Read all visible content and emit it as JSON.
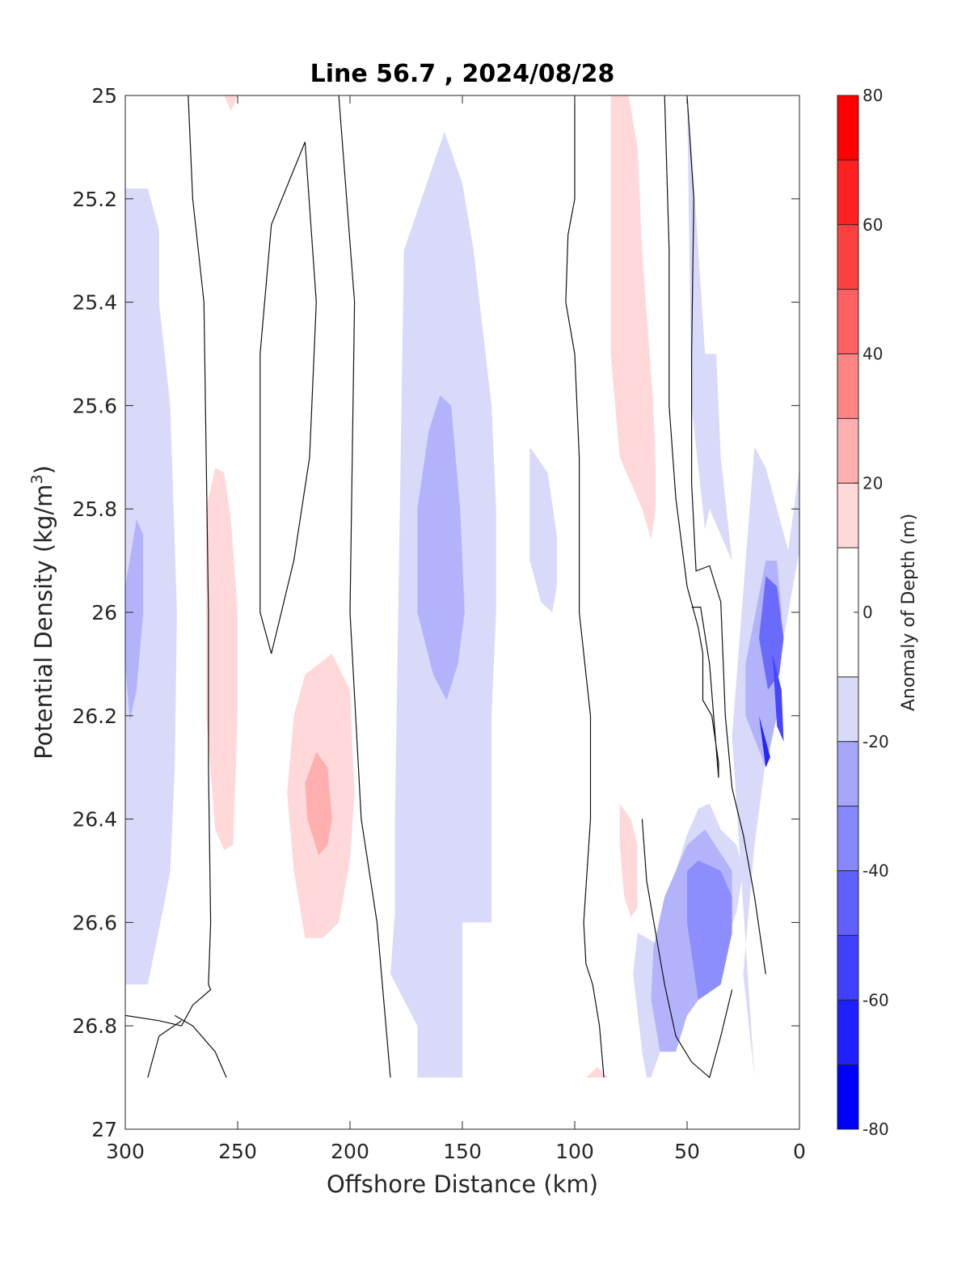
{
  "chart_data": {
    "type": "heatmap",
    "title": "Line 56.7 , 2024/08/28",
    "xlabel": "Offshore Distance (km)",
    "ylabel": "Potential Density (kg/m",
    "ylabel_sup": "3",
    "ylabel_close": ")",
    "xlim": [
      300,
      0
    ],
    "ylim": [
      25,
      27
    ],
    "y_reversed": true,
    "x_ticks": [
      "300",
      "250",
      "200",
      "150",
      "100",
      "50",
      "0"
    ],
    "y_ticks": [
      "25",
      "25.2",
      "25.4",
      "25.6",
      "25.8",
      "26",
      "26.2",
      "26.4",
      "26.6",
      "26.8",
      "27"
    ],
    "colorbar": {
      "label": "Anomaly of Depth (m)",
      "range": [
        -80,
        80
      ],
      "ticks": [
        "80",
        "60",
        "40",
        "20",
        "0",
        "-20",
        "-40",
        "-60",
        "-80"
      ],
      "levels": [
        -80,
        -70,
        -60,
        -50,
        -40,
        -30,
        -20,
        -10,
        10,
        20,
        30,
        40,
        50,
        60,
        70,
        80
      ],
      "bin_colors": [
        "#0000ff",
        "#2020ff",
        "#4040ff",
        "#6060ff",
        "#8787ff",
        "#a5a5fa",
        "#d9d9fa",
        "#ffffff",
        "#ffd9d9",
        "#ffafaf",
        "#ff8585",
        "#ff6060",
        "#ff4040",
        "#ff2020",
        "#ff0000"
      ]
    },
    "regions": [
      {
        "level": "-10 to -20",
        "x": [
          300,
          290,
          285,
          285,
          280,
          277,
          278,
          280,
          283,
          290,
          300
        ],
        "y": [
          25.18,
          25.18,
          25.26,
          25.4,
          25.6,
          26.0,
          26.3,
          26.5,
          26.57,
          26.72,
          26.72
        ]
      },
      {
        "level": "-20 to -30",
        "x": [
          300,
          295,
          292,
          292,
          295,
          298,
          300
        ],
        "y": [
          25.95,
          25.82,
          25.85,
          26.0,
          26.15,
          26.21,
          26.1
        ]
      },
      {
        "level": "10 to 20",
        "x": [
          264,
          260,
          256,
          253,
          250,
          250,
          252,
          256,
          260,
          264
        ],
        "y": [
          25.8,
          25.72,
          25.73,
          25.82,
          26.0,
          26.2,
          26.45,
          26.46,
          26.42,
          26.2
        ]
      },
      {
        "level": "10 to 20",
        "x": [
          256,
          253,
          250,
          254
        ],
        "y": [
          25.0,
          25.03,
          25.0,
          25.0
        ]
      },
      {
        "level": "10 to 20",
        "x": [
          220,
          208,
          200,
          198,
          200,
          205,
          212,
          220,
          225,
          228,
          225
        ],
        "y": [
          26.12,
          26.08,
          26.15,
          26.35,
          26.48,
          26.6,
          26.63,
          26.63,
          26.5,
          26.35,
          26.2
        ]
      },
      {
        "level": "20 to 30",
        "x": [
          215,
          210,
          208,
          210,
          214,
          219,
          220
        ],
        "y": [
          26.27,
          26.3,
          26.4,
          26.45,
          26.47,
          26.4,
          26.33
        ]
      },
      {
        "level": "-10 to -20",
        "x": [
          158,
          150,
          145,
          137,
          135,
          135,
          137,
          137,
          150,
          150,
          170,
          170,
          182,
          180,
          180,
          176
        ],
        "y": [
          25.07,
          25.17,
          25.3,
          25.6,
          25.8,
          26.0,
          26.2,
          26.6,
          26.6,
          26.9,
          26.9,
          26.8,
          26.7,
          26.58,
          26.4,
          25.3
        ]
      },
      {
        "level": "-20 to -30",
        "x": [
          160,
          155,
          151,
          149,
          152,
          157,
          163,
          170,
          170,
          165
        ],
        "y": [
          25.58,
          25.6,
          25.8,
          26.0,
          26.1,
          26.17,
          26.12,
          26.0,
          25.8,
          25.65
        ]
      },
      {
        "level": "-10 to -20",
        "x": [
          120,
          112,
          108,
          108,
          110,
          115,
          120
        ],
        "y": [
          25.68,
          25.73,
          25.85,
          25.95,
          26.0,
          25.98,
          25.9
        ]
      },
      {
        "level": "10 to 20",
        "x": [
          84,
          76,
          72,
          70,
          65,
          64,
          64,
          66,
          70,
          80,
          84,
          84
        ],
        "y": [
          25.0,
          25.0,
          25.1,
          25.3,
          25.6,
          25.72,
          25.8,
          25.86,
          25.8,
          25.7,
          25.5,
          25.2
        ]
      },
      {
        "level": "10 to 20",
        "x": [
          80,
          75,
          72,
          72,
          75,
          78,
          80
        ],
        "y": [
          26.37,
          26.4,
          26.45,
          26.57,
          26.59,
          26.55,
          26.45
        ]
      },
      {
        "level": "10 to 20",
        "x": [
          95,
          85,
          90
        ],
        "y": [
          26.9,
          26.9,
          26.88
        ]
      },
      {
        "level": "-10 to -20",
        "x": [
          50,
          48,
          45,
          42,
          37,
          35,
          30,
          35,
          40,
          42,
          48
        ],
        "y": [
          25.0,
          25.1,
          25.3,
          25.5,
          25.5,
          25.7,
          25.9,
          25.85,
          25.8,
          25.84,
          25.6
        ]
      },
      {
        "level": "-10 to -20",
        "x": [
          30,
          20,
          15,
          10,
          5,
          0,
          0,
          10,
          20,
          25,
          20,
          20
        ],
        "y": [
          26.24,
          25.68,
          25.72,
          25.8,
          25.88,
          25.72,
          25.88,
          26.12,
          26.45,
          26.7,
          26.9,
          26.9
        ]
      },
      {
        "level": "-10 to -20",
        "x": [
          60,
          55,
          50,
          45,
          40,
          35,
          28,
          25,
          28,
          35,
          45,
          55,
          62,
          66,
          68,
          70,
          74,
          72
        ],
        "y": [
          26.65,
          26.5,
          26.43,
          26.38,
          26.37,
          26.42,
          26.45,
          26.5,
          26.58,
          26.66,
          26.72,
          26.8,
          26.85,
          26.9,
          26.9,
          26.85,
          26.7,
          26.62
        ]
      },
      {
        "level": "-20 to -30",
        "x": [
          50,
          42,
          30,
          30,
          35,
          40,
          50,
          55,
          62,
          66,
          65,
          60
        ],
        "y": [
          26.45,
          26.42,
          26.5,
          26.6,
          26.65,
          26.72,
          26.78,
          26.85,
          26.85,
          26.75,
          26.65,
          26.55
        ]
      },
      {
        "level": "-20 to -30",
        "x": [
          24,
          15,
          10,
          8,
          10,
          15,
          24
        ],
        "y": [
          26.1,
          25.9,
          25.9,
          26.0,
          26.2,
          26.3,
          26.2
        ]
      },
      {
        "level": "-30 to -40",
        "x": [
          50,
          45,
          35,
          30,
          30,
          35,
          45,
          50
        ],
        "y": [
          26.5,
          26.48,
          26.5,
          26.55,
          26.62,
          26.72,
          26.75,
          26.6
        ]
      },
      {
        "level": "-40 to -50",
        "x": [
          15,
          10,
          7,
          9,
          14,
          18
        ],
        "y": [
          25.93,
          25.95,
          26.05,
          26.12,
          26.15,
          26.05
        ]
      },
      {
        "level": "-50 to -60",
        "x": [
          12,
          8,
          7,
          10
        ],
        "y": [
          26.08,
          26.15,
          26.25,
          26.22
        ]
      },
      {
        "level": "-60 to -70",
        "x": [
          18,
          13,
          15
        ],
        "y": [
          26.2,
          26.28,
          26.3
        ]
      }
    ],
    "zero_contours": [
      {
        "x": [
          272,
          270,
          265,
          263,
          263,
          262,
          263,
          262,
          270,
          275,
          285,
          300
        ],
        "y": [
          25.0,
          25.2,
          25.4,
          26.0,
          26.3,
          26.6,
          26.72,
          26.73,
          26.76,
          26.8,
          26.79,
          26.78
        ]
      },
      {
        "x": [
          278,
          270,
          260,
          255
        ],
        "y": [
          26.78,
          26.8,
          26.85,
          26.9
        ]
      },
      {
        "x": [
          290,
          285,
          275
        ],
        "y": [
          26.9,
          26.82,
          26.79
        ]
      },
      {
        "x": [
          205,
          198,
          200,
          195,
          188,
          182
        ],
        "y": [
          25.0,
          25.4,
          26.0,
          26.4,
          26.6,
          26.9
        ]
      },
      {
        "x": [
          215,
          218,
          225,
          235,
          240,
          240,
          235,
          220,
          215
        ],
        "y": [
          25.4,
          25.7,
          25.9,
          26.08,
          26.0,
          25.5,
          25.25,
          25.09,
          25.4
        ]
      },
      {
        "x": [
          100,
          100,
          103,
          104,
          100,
          98,
          98,
          93,
          93,
          96,
          95,
          92,
          89,
          87
        ],
        "y": [
          25.0,
          25.2,
          25.27,
          25.4,
          25.5,
          25.7,
          26.0,
          26.2,
          26.4,
          26.6,
          26.68,
          26.72,
          26.8,
          26.9
        ]
      },
      {
        "x": [
          50,
          47,
          48,
          48,
          46,
          40,
          35,
          33,
          30,
          25,
          20,
          15
        ],
        "y": [
          25.0,
          25.2,
          25.5,
          25.75,
          25.92,
          25.91,
          25.98,
          26.2,
          26.34,
          26.43,
          26.55,
          26.7
        ]
      },
      {
        "x": [
          60,
          58,
          58,
          55,
          50,
          45,
          43,
          43,
          39,
          36,
          36,
          40,
          44,
          48
        ],
        "y": [
          25.0,
          25.3,
          25.6,
          25.78,
          25.95,
          26.03,
          26.08,
          26.17,
          26.2,
          26.29,
          26.32,
          26.1,
          25.99,
          25.99
        ]
      },
      {
        "x": [
          70,
          68,
          60,
          55,
          48,
          40,
          35,
          30
        ],
        "y": [
          26.4,
          26.52,
          26.72,
          26.82,
          26.87,
          26.9,
          26.82,
          26.73
        ]
      }
    ]
  }
}
